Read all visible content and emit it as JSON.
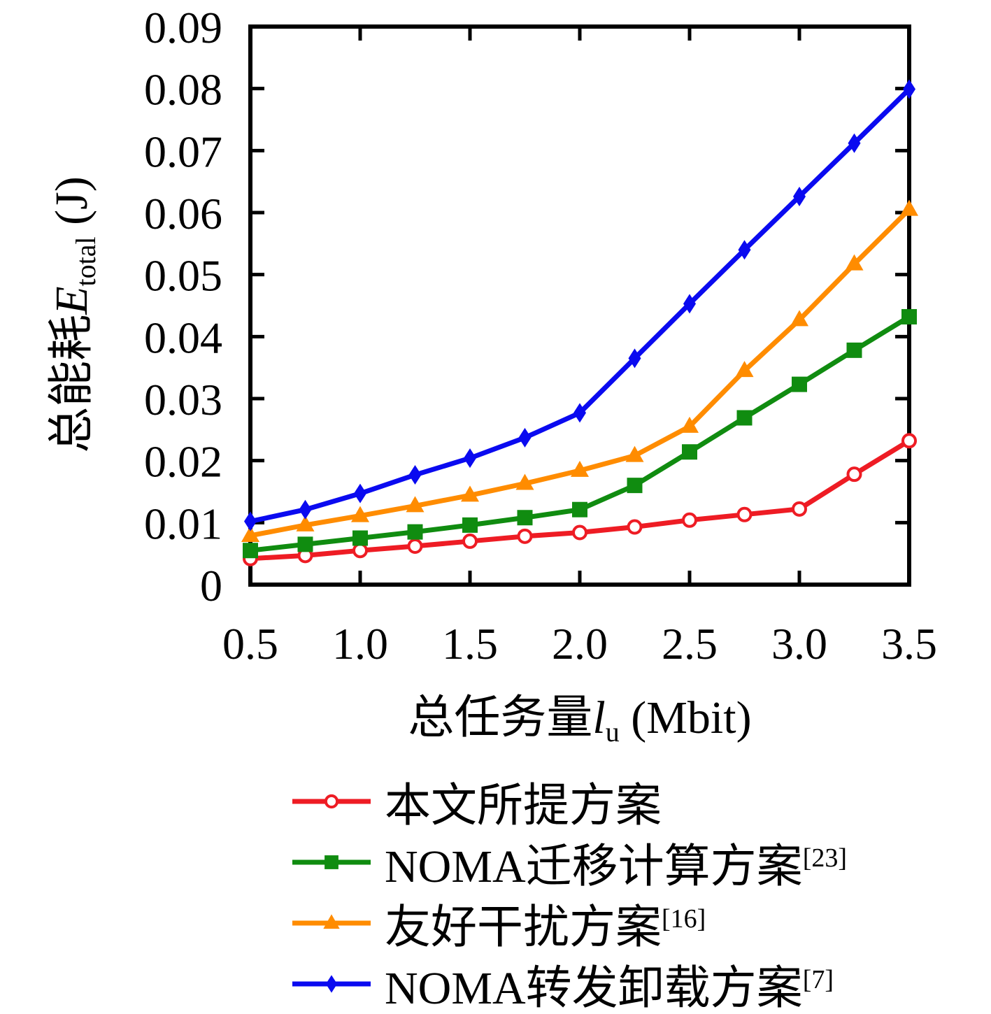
{
  "chart_data": {
    "type": "line",
    "x": [
      0.5,
      0.75,
      1.0,
      1.25,
      1.5,
      1.75,
      2.0,
      2.25,
      2.5,
      2.75,
      3.0,
      3.25,
      3.5
    ],
    "series": [
      {
        "name": "本文所提方案",
        "ref": "",
        "marker": "circle",
        "color": "#ee1c24",
        "values": [
          0.0042,
          0.0047,
          0.0055,
          0.0062,
          0.007,
          0.0078,
          0.0084,
          0.0093,
          0.0104,
          0.0113,
          0.0122,
          0.0178,
          0.0232
        ]
      },
      {
        "name": "NOMA迁移计算方案",
        "ref": "[23]",
        "marker": "square",
        "color": "#108c10",
        "values": [
          0.0055,
          0.0065,
          0.0075,
          0.0085,
          0.0096,
          0.0108,
          0.0121,
          0.016,
          0.0214,
          0.0269,
          0.0323,
          0.0378,
          0.0432
        ]
      },
      {
        "name": "友好干扰方案",
        "ref": "[16]",
        "marker": "triangle",
        "color": "#ff8c00",
        "values": [
          0.0079,
          0.0096,
          0.0111,
          0.0127,
          0.0144,
          0.0163,
          0.0184,
          0.0208,
          0.0255,
          0.0345,
          0.0427,
          0.0517,
          0.0605
        ]
      },
      {
        "name": "NOMA转发卸载方案",
        "ref": "[7]",
        "marker": "diamond",
        "color": "#0a0af0",
        "values": [
          0.0102,
          0.0121,
          0.0147,
          0.0177,
          0.0204,
          0.0237,
          0.0277,
          0.0365,
          0.0453,
          0.054,
          0.0626,
          0.0712,
          0.0799
        ]
      }
    ],
    "xlabel": {
      "prefix": "总任务量",
      "var": "l",
      "sub": "u",
      "unit": " (Mbit)"
    },
    "ylabel": {
      "prefix": "总能耗",
      "var": "E",
      "sub": "total",
      "unit": " (J)"
    },
    "x_ticks": [
      0.5,
      1.0,
      1.5,
      2.0,
      2.5,
      3.0,
      3.5
    ],
    "x_tick_labels": [
      "0.5",
      "1.0",
      "1.5",
      "2.0",
      "2.5",
      "3.0",
      "3.5"
    ],
    "y_ticks": [
      0,
      0.01,
      0.02,
      0.03,
      0.04,
      0.05,
      0.06,
      0.07,
      0.08,
      0.09
    ],
    "y_tick_labels": [
      "0",
      "0.01",
      "0.02",
      "0.03",
      "0.04",
      "0.05",
      "0.06",
      "0.07",
      "0.08",
      "0.09"
    ],
    "xlim": [
      0.5,
      3.5
    ],
    "ylim": [
      0,
      0.09
    ],
    "grid": false,
    "legend_position": "below",
    "axis_color": "#000000"
  }
}
